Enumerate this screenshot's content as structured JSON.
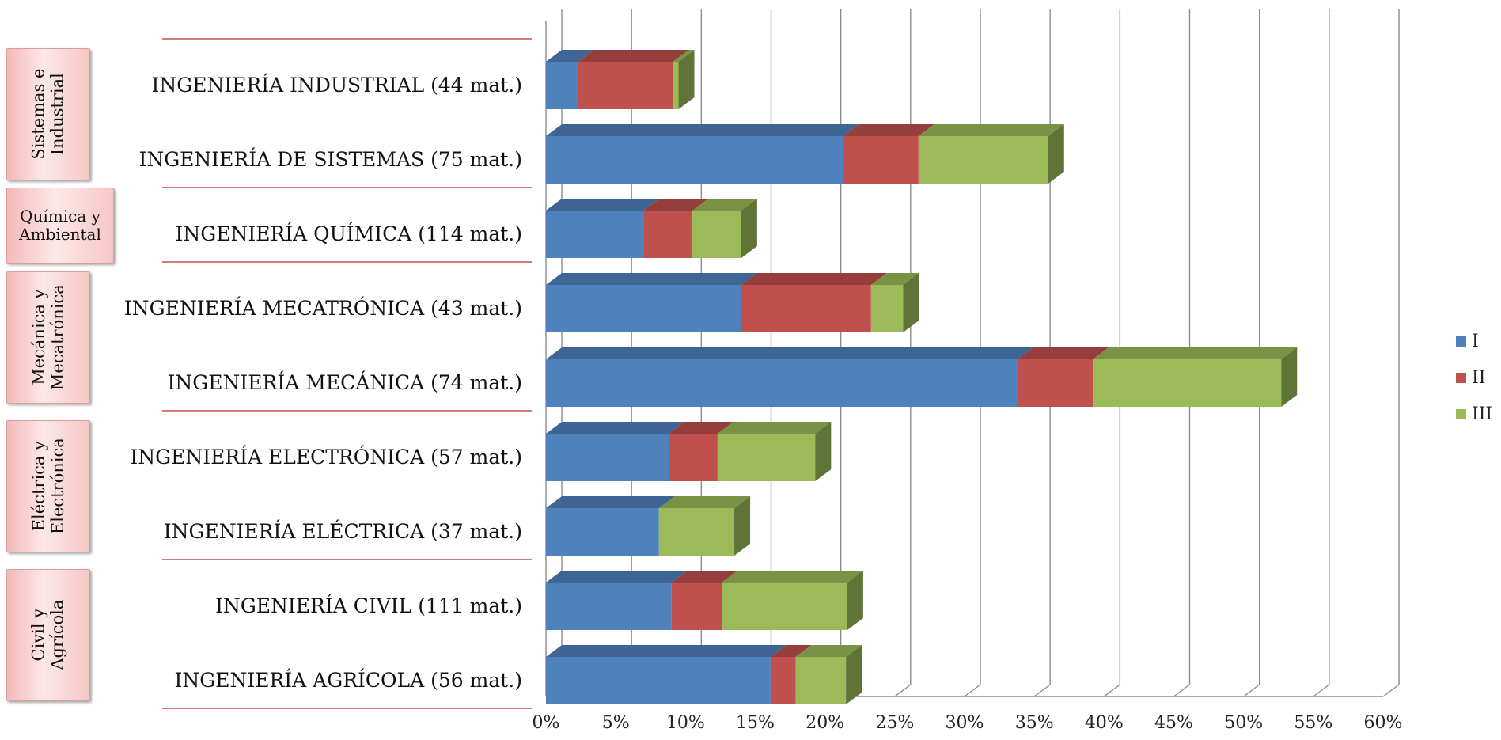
{
  "chart_data": {
    "type": "bar",
    "orientation": "horizontal",
    "stacked": true,
    "style": "3d",
    "categories": [
      "INGENIERÍA INDUSTRIAL (44 mat.)",
      "INGENIERÍA DE SISTEMAS (75 mat.)",
      "INGENIERÍA QUÍMICA (114 mat.)",
      "INGENIERÍA MECATRÓNICA (43 mat.)",
      "INGENIERÍA MECÁNICA (74 mat.)",
      "INGENIERÍA ELECTRÓNICA (57 mat.)",
      "INGENIERÍA ELÉCTRICA (37 mat.)",
      "INGENIERÍA CIVIL (111 mat.)",
      "INGENIERÍA AGRÍCOLA (56 mat.)"
    ],
    "series": [
      {
        "name": "I",
        "color": "#4F81BD",
        "values": [
          2.3,
          21.3,
          7.0,
          14.0,
          33.8,
          8.8,
          8.1,
          9.0,
          16.1
        ]
      },
      {
        "name": "II",
        "color": "#C0504D",
        "values": [
          6.8,
          5.4,
          3.5,
          9.3,
          5.4,
          3.5,
          0,
          3.6,
          1.8
        ]
      },
      {
        "name": "III",
        "color": "#9BBB59",
        "values": [
          0.4,
          9.3,
          3.5,
          2.3,
          13.5,
          7.0,
          5.4,
          9.0,
          3.6
        ]
      }
    ],
    "xlim": [
      0,
      60
    ],
    "x_ticks": [
      "0%",
      "5%",
      "10%",
      "15%",
      "20%",
      "25%",
      "30%",
      "35%",
      "40%",
      "45%",
      "50%",
      "55%",
      "60%"
    ],
    "grid": true,
    "legend_position": "right",
    "groups": [
      {
        "label": "Sistemas e\nIndustrial",
        "categories": 2,
        "orientation": "vertical"
      },
      {
        "label": "Química y\nAmbiental",
        "categories": 1,
        "orientation": "horizontal"
      },
      {
        "label": "Mecánica y\nMecatrónica",
        "categories": 2,
        "orientation": "vertical"
      },
      {
        "label": "Eléctrica y\nElectrónica",
        "categories": 2,
        "orientation": "vertical"
      },
      {
        "label": "Civil y\nAgrícola",
        "categories": 2,
        "orientation": "vertical"
      }
    ]
  }
}
